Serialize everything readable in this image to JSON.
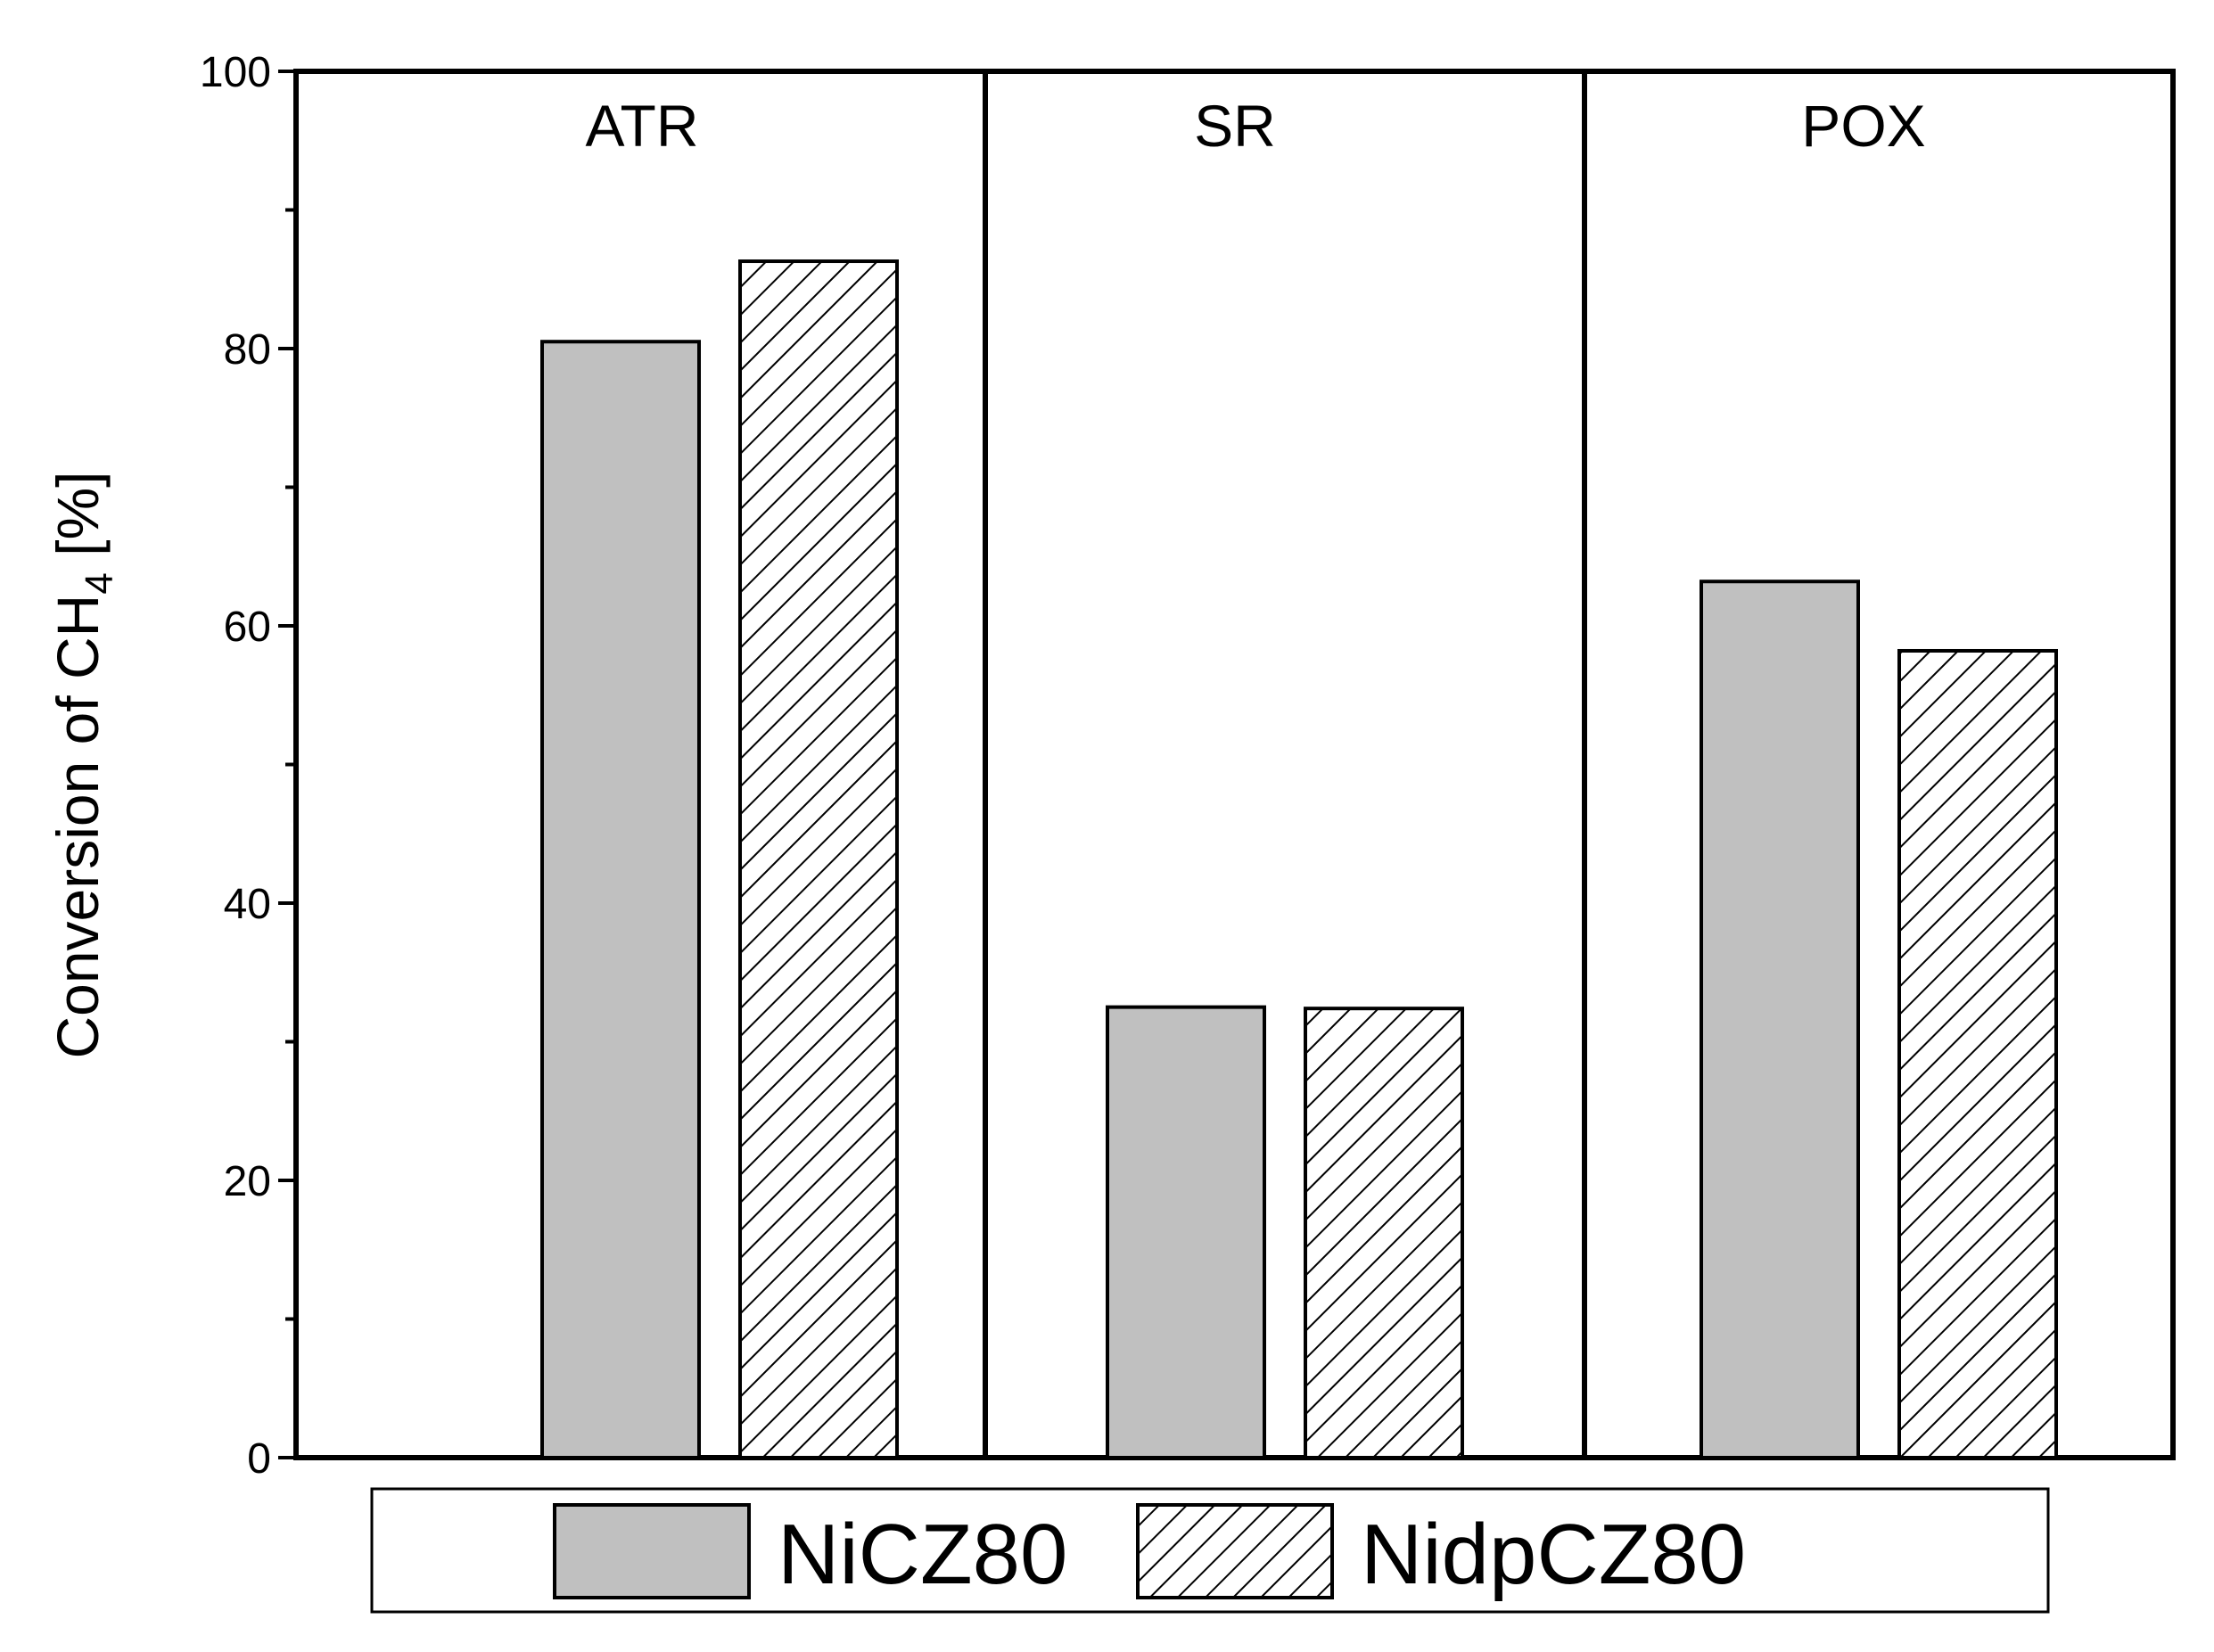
{
  "chart_data": {
    "type": "bar",
    "categories": [
      "ATR",
      "SR",
      "POX"
    ],
    "series": [
      {
        "name": "NiCZ80",
        "values": [
          80.5,
          32.5,
          63.2
        ],
        "fill": "#c0c0c0",
        "pattern": "solid"
      },
      {
        "name": "NidpCZ80",
        "values": [
          86.3,
          32.4,
          58.2
        ],
        "fill": "#ffffff",
        "pattern": "diagonal-hatch"
      }
    ],
    "ylabel": {
      "main": "Conversion of CH",
      "sub": "4",
      "unit": " [%]"
    },
    "ylim": [
      0,
      100
    ],
    "yticks": [
      "0",
      "20",
      "40",
      "60",
      "80",
      "100"
    ],
    "grid": false,
    "legend": "bottom"
  }
}
